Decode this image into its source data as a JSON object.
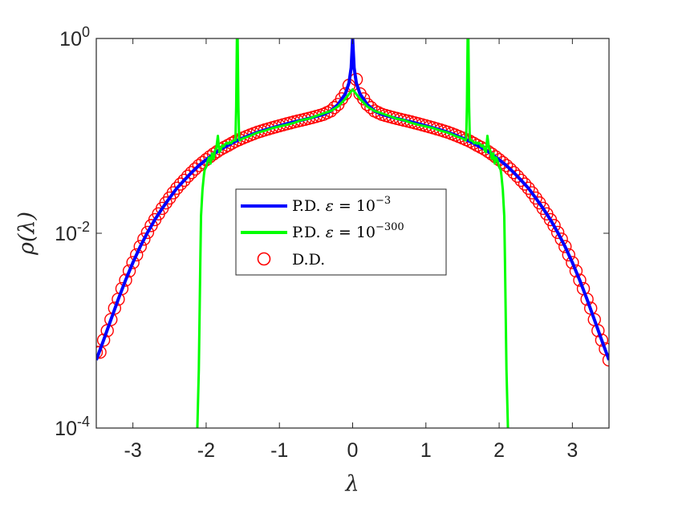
{
  "chart_data": {
    "type": "line",
    "xlabel": "λ",
    "ylabel": "ρ(λ)",
    "xlim": [
      -3.5,
      3.5
    ],
    "ylim": [
      0.0001,
      1
    ],
    "yscale": "log",
    "x_ticks": [
      -3,
      -2,
      -1,
      0,
      1,
      2,
      3
    ],
    "x_tick_labels": [
      "-3",
      "-2",
      "-1",
      "0",
      "1",
      "2",
      "3"
    ],
    "y_ticks": [
      0.0001,
      0.01,
      1
    ],
    "y_tick_labels": [
      {
        "base": "10",
        "exp": "-4"
      },
      {
        "base": "10",
        "exp": "-2"
      },
      {
        "base": "10",
        "exp": "0"
      }
    ],
    "grid": false,
    "legend_position": "center",
    "series": [
      {
        "name": "P.D. ε = 10⁻³",
        "legend_text": "P.D. ",
        "legend_base": "10",
        "legend_exp": "−3",
        "color": "#0000ff",
        "style": "line",
        "x": [
          -3.5,
          -3.4,
          -3.3,
          -3.2,
          -3.1,
          -3.0,
          -2.9,
          -2.8,
          -2.7,
          -2.6,
          -2.5,
          -2.4,
          -2.3,
          -2.2,
          -2.1,
          -2.0,
          -1.9,
          -1.8,
          -1.7,
          -1.6,
          -1.5,
          -1.4,
          -1.3,
          -1.2,
          -1.1,
          -1.0,
          -0.9,
          -0.8,
          -0.7,
          -0.6,
          -0.5,
          -0.4,
          -0.3,
          -0.2,
          -0.1,
          -0.05,
          -0.02,
          0.0,
          0.02,
          0.05,
          0.1,
          0.2,
          0.3,
          0.4,
          0.5,
          0.6,
          0.7,
          0.8,
          0.9,
          1.0,
          1.1,
          1.2,
          1.3,
          1.4,
          1.5,
          1.6,
          1.7,
          1.8,
          1.9,
          2.0,
          2.1,
          2.2,
          2.3,
          2.4,
          2.5,
          2.6,
          2.7,
          2.8,
          2.9,
          3.0,
          3.1,
          3.2,
          3.3,
          3.4,
          3.5
        ],
        "y": [
          0.0005,
          0.0008,
          0.0013,
          0.0021,
          0.0033,
          0.005,
          0.0073,
          0.0102,
          0.0138,
          0.018,
          0.023,
          0.029,
          0.035,
          0.042,
          0.0495,
          0.057,
          0.065,
          0.073,
          0.08,
          0.088,
          0.095,
          0.102,
          0.109,
          0.115,
          0.121,
          0.127,
          0.133,
          0.139,
          0.145,
          0.151,
          0.158,
          0.166,
          0.18,
          0.21,
          0.27,
          0.35,
          0.5,
          1.0,
          0.5,
          0.35,
          0.27,
          0.21,
          0.18,
          0.166,
          0.158,
          0.151,
          0.145,
          0.139,
          0.133,
          0.127,
          0.121,
          0.115,
          0.109,
          0.102,
          0.095,
          0.088,
          0.08,
          0.073,
          0.065,
          0.057,
          0.0495,
          0.042,
          0.035,
          0.029,
          0.023,
          0.018,
          0.0138,
          0.0102,
          0.0073,
          0.005,
          0.0033,
          0.0021,
          0.0013,
          0.0008,
          0.0005
        ]
      },
      {
        "name": "P.D. ε = 10⁻³⁰⁰",
        "legend_text": "P.D. ",
        "legend_base": "10",
        "legend_exp": "−300",
        "color": "#00ff00",
        "style": "line",
        "x": [
          -2.12,
          -2.1,
          -2.08,
          -2.07,
          -2.05,
          -2.03,
          -2.02,
          -2.0,
          -1.98,
          -1.96,
          -1.94,
          -1.92,
          -1.9,
          -1.88,
          -1.86,
          -1.84,
          -1.82,
          -1.8,
          -1.78,
          -1.76,
          -1.74,
          -1.72,
          -1.7,
          -1.68,
          -1.66,
          -1.64,
          -1.62,
          -1.6,
          -1.59,
          -1.58,
          -1.57,
          -1.56,
          -1.55,
          -1.54,
          -1.52,
          -1.5,
          -1.4,
          -1.3,
          -1.2,
          -1.1,
          -1.0,
          -0.9,
          -0.8,
          -0.7,
          -0.6,
          -0.5,
          -0.4,
          -0.3,
          -0.2,
          -0.1,
          0.0,
          0.1,
          0.2,
          0.3,
          0.4,
          0.5,
          0.6,
          0.7,
          0.8,
          0.9,
          1.0,
          1.1,
          1.2,
          1.3,
          1.4,
          1.5,
          1.52,
          1.54,
          1.55,
          1.56,
          1.57,
          1.58,
          1.59,
          1.6,
          1.62,
          1.64,
          1.66,
          1.68,
          1.7,
          1.72,
          1.74,
          1.76,
          1.78,
          1.8,
          1.82,
          1.84,
          1.86,
          1.88,
          1.9,
          1.92,
          1.94,
          1.96,
          1.98,
          2.0,
          2.02,
          2.03,
          2.05,
          2.07,
          2.08,
          2.1,
          2.12
        ],
        "y": [
          0.0001,
          0.0004,
          0.005,
          0.015,
          0.028,
          0.04,
          0.045,
          0.048,
          0.055,
          0.06,
          0.052,
          0.066,
          0.058,
          0.07,
          0.076,
          0.1,
          0.068,
          0.072,
          0.08,
          0.078,
          0.082,
          0.085,
          0.083,
          0.086,
          0.084,
          0.088,
          0.09,
          0.09,
          0.2,
          1.0,
          1.0,
          0.2,
          0.092,
          0.09,
          0.092,
          0.094,
          0.1,
          0.108,
          0.113,
          0.12,
          0.125,
          0.13,
          0.136,
          0.145,
          0.15,
          0.16,
          0.17,
          0.18,
          0.2,
          0.24,
          0.3,
          0.24,
          0.2,
          0.18,
          0.17,
          0.16,
          0.15,
          0.145,
          0.136,
          0.13,
          0.125,
          0.12,
          0.113,
          0.108,
          0.1,
          0.094,
          0.092,
          0.09,
          0.092,
          0.2,
          1.0,
          1.0,
          0.2,
          0.09,
          0.09,
          0.088,
          0.084,
          0.086,
          0.083,
          0.085,
          0.082,
          0.078,
          0.08,
          0.072,
          0.068,
          0.1,
          0.076,
          0.07,
          0.058,
          0.066,
          0.052,
          0.06,
          0.055,
          0.048,
          0.045,
          0.04,
          0.028,
          0.015,
          0.005,
          0.0004,
          0.0001
        ]
      },
      {
        "name": "D.D.",
        "legend_text": "D.D.",
        "color": "#ff0000",
        "style": "markers",
        "x": [
          -3.5,
          -3.45,
          -3.4,
          -3.35,
          -3.3,
          -3.25,
          -3.2,
          -3.15,
          -3.1,
          -3.05,
          -3.0,
          -2.95,
          -2.9,
          -2.85,
          -2.8,
          -2.75,
          -2.7,
          -2.65,
          -2.6,
          -2.55,
          -2.5,
          -2.45,
          -2.4,
          -2.35,
          -2.3,
          -2.25,
          -2.2,
          -2.15,
          -2.1,
          -2.05,
          -2.0,
          -1.95,
          -1.9,
          -1.85,
          -1.8,
          -1.75,
          -1.7,
          -1.65,
          -1.6,
          -1.55,
          -1.5,
          -1.45,
          -1.4,
          -1.35,
          -1.3,
          -1.25,
          -1.2,
          -1.15,
          -1.1,
          -1.05,
          -1.0,
          -0.95,
          -0.9,
          -0.85,
          -0.8,
          -0.75,
          -0.7,
          -0.65,
          -0.6,
          -0.55,
          -0.5,
          -0.45,
          -0.4,
          -0.35,
          -0.3,
          -0.25,
          -0.2,
          -0.15,
          -0.1,
          -0.05,
          0.05,
          0.1,
          0.15,
          0.2,
          0.25,
          0.3,
          0.35,
          0.4,
          0.45,
          0.5,
          0.55,
          0.6,
          0.65,
          0.7,
          0.75,
          0.8,
          0.85,
          0.9,
          0.95,
          1.0,
          1.05,
          1.1,
          1.15,
          1.2,
          1.25,
          1.3,
          1.35,
          1.4,
          1.45,
          1.5,
          1.55,
          1.6,
          1.65,
          1.7,
          1.75,
          1.8,
          1.85,
          1.9,
          1.95,
          2.0,
          2.05,
          2.1,
          2.15,
          2.2,
          2.25,
          2.3,
          2.35,
          2.4,
          2.45,
          2.5,
          2.55,
          2.6,
          2.65,
          2.7,
          2.75,
          2.8,
          2.85,
          2.9,
          2.95,
          3.0,
          3.05,
          3.1,
          3.15,
          3.2,
          3.25,
          3.3,
          3.35,
          3.4,
          3.45,
          3.5
        ],
        "y": [
          0.0006,
          0.0006,
          0.0008,
          0.001,
          0.0013,
          0.0017,
          0.0021,
          0.0027,
          0.0033,
          0.0041,
          0.005,
          0.006,
          0.0073,
          0.0087,
          0.0102,
          0.012,
          0.0138,
          0.0158,
          0.018,
          0.0205,
          0.023,
          0.026,
          0.029,
          0.032,
          0.035,
          0.0385,
          0.042,
          0.0457,
          0.0495,
          0.0532,
          0.057,
          0.061,
          0.065,
          0.069,
          0.073,
          0.0765,
          0.08,
          0.084,
          0.088,
          0.0915,
          0.095,
          0.0985,
          0.102,
          0.1055,
          0.109,
          0.112,
          0.115,
          0.118,
          0.121,
          0.124,
          0.127,
          0.13,
          0.133,
          0.136,
          0.139,
          0.142,
          0.145,
          0.148,
          0.151,
          0.1545,
          0.158,
          0.162,
          0.166,
          0.173,
          0.18,
          0.195,
          0.21,
          0.24,
          0.27,
          0.33,
          0.38,
          0.27,
          0.24,
          0.21,
          0.195,
          0.18,
          0.173,
          0.166,
          0.162,
          0.158,
          0.1545,
          0.151,
          0.148,
          0.145,
          0.142,
          0.139,
          0.136,
          0.133,
          0.13,
          0.127,
          0.124,
          0.121,
          0.118,
          0.115,
          0.112,
          0.109,
          0.1055,
          0.102,
          0.0985,
          0.095,
          0.0915,
          0.088,
          0.084,
          0.08,
          0.0765,
          0.073,
          0.069,
          0.065,
          0.061,
          0.057,
          0.0532,
          0.0495,
          0.0457,
          0.042,
          0.0385,
          0.035,
          0.032,
          0.029,
          0.026,
          0.023,
          0.0205,
          0.018,
          0.0158,
          0.0138,
          0.012,
          0.0102,
          0.0087,
          0.0073,
          0.006,
          0.005,
          0.0041,
          0.0033,
          0.0027,
          0.0021,
          0.0017,
          0.0013,
          0.001,
          0.0008,
          0.00065,
          0.0005
        ]
      }
    ]
  }
}
